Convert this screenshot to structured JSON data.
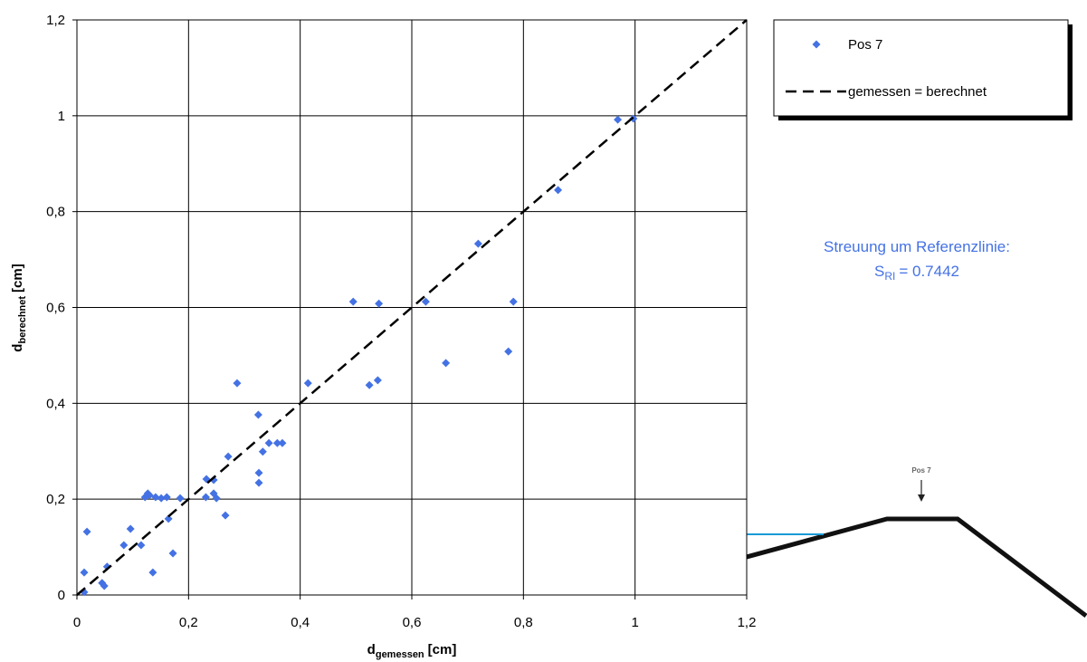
{
  "chart_data": {
    "type": "scatter",
    "x_label": {
      "main": "d",
      "subscript": "gemessen",
      "unit": "[cm]"
    },
    "y_label": {
      "main": "d",
      "subscript": "berechnet",
      "unit": "[cm]"
    },
    "xlim": [
      0,
      1.2
    ],
    "ylim": [
      0,
      1.2
    ],
    "xticks": [
      0,
      {
        "value": 0.2,
        "label": "0,2"
      },
      {
        "value": 0.4,
        "label": "0,4"
      },
      {
        "value": 0.6,
        "label": "0,6"
      },
      {
        "value": 0.8,
        "label": "0,8"
      },
      1,
      {
        "value": 1.2,
        "label": "1,2"
      }
    ],
    "yticks": [
      0,
      {
        "value": 0.2,
        "label": "0,2"
      },
      {
        "value": 0.4,
        "label": "0,4"
      },
      {
        "value": 0.6,
        "label": "0,6"
      },
      {
        "value": 0.8,
        "label": "0,8"
      },
      1,
      {
        "value": 1.2,
        "label": "1,2"
      }
    ],
    "grid": true,
    "legend": "top-right",
    "series": [
      {
        "name": "Pos 7",
        "type": "scatter",
        "color": "#4472e4",
        "x": [
          0.013,
          0.013,
          0.018,
          0.045,
          0.049,
          0.054,
          0.084,
          0.096,
          0.115,
          0.122,
          0.127,
          0.13,
          0.136,
          0.141,
          0.151,
          0.161,
          0.164,
          0.172,
          0.185,
          0.232,
          0.245,
          0.231,
          0.245,
          0.25,
          0.266,
          0.271,
          0.287,
          0.325,
          0.326,
          0.326,
          0.333,
          0.344,
          0.359,
          0.368,
          0.414,
          0.495,
          0.524,
          0.539,
          0.541,
          0.625,
          0.661,
          0.719,
          0.773,
          0.782,
          0.862,
          0.969,
          0.997
        ],
        "values": [
          0.047,
          0.006,
          0.132,
          0.025,
          0.019,
          0.059,
          0.104,
          0.138,
          0.104,
          0.204,
          0.212,
          0.208,
          0.047,
          0.204,
          0.202,
          0.204,
          0.159,
          0.087,
          0.202,
          0.242,
          0.24,
          0.204,
          0.212,
          0.202,
          0.166,
          0.289,
          0.442,
          0.376,
          0.255,
          0.234,
          0.299,
          0.317,
          0.317,
          0.317,
          0.442,
          0.612,
          0.438,
          0.448,
          0.608,
          0.612,
          0.484,
          0.733,
          0.508,
          0.612,
          0.845,
          0.992,
          0.994
        ]
      },
      {
        "name": "gemessen = berechnet",
        "type": "line",
        "color": "#000000",
        "dashed": true,
        "x": [
          0,
          1.2
        ],
        "values": [
          0,
          1.2
        ]
      }
    ],
    "annotation": {
      "line1": "Streuung um Referenzlinie:",
      "symbol": "S",
      "subscript": "RI",
      "value_text": "= 0.7442",
      "color": "#4472e4"
    }
  },
  "inset": {
    "label": "Pos 7"
  }
}
